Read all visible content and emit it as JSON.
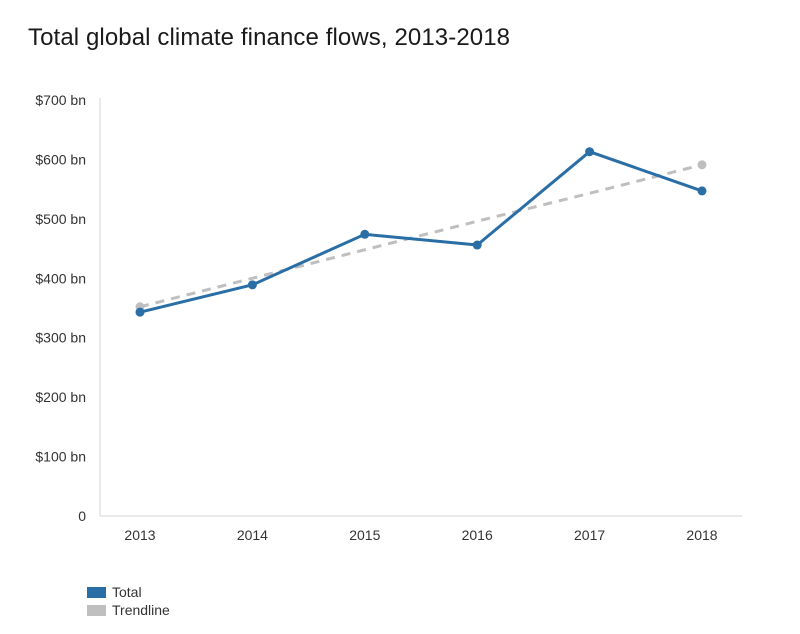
{
  "chart_data": {
    "type": "line",
    "title": "Total global climate finance flows, 2013-2018",
    "xlabel": "",
    "ylabel": "",
    "x": [
      "2013",
      "2014",
      "2015",
      "2016",
      "2017",
      "2018"
    ],
    "ylim": [
      0,
      700
    ],
    "yticks": [
      0,
      100,
      200,
      300,
      400,
      500,
      600,
      700
    ],
    "ytick_labels": [
      "0",
      "$100 bn",
      "$200 bn",
      "$300 bn",
      "$400 bn",
      "$500 bn",
      "$600 bn",
      "$700 bn"
    ],
    "grid": false,
    "legend_position": "bottom-left",
    "series": [
      {
        "name": "Total",
        "color": "#2a6ea6",
        "style": "solid",
        "markers": "all",
        "values": [
          343,
          389,
          474,
          456,
          613,
          547
        ]
      },
      {
        "name": "Trendline",
        "color": "#bfbfbf",
        "style": "dashed",
        "markers": "endpoints",
        "values": [
          352,
          400,
          448,
          496,
          543,
          591
        ]
      }
    ]
  }
}
